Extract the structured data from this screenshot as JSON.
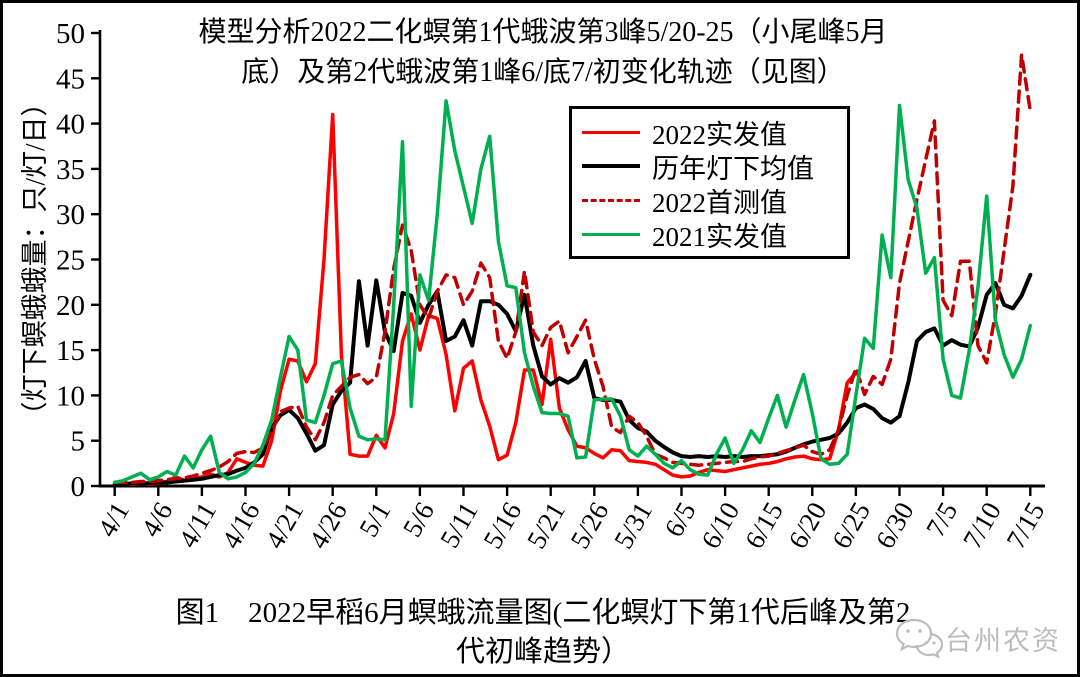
{
  "title": {
    "lines": [
      "模型分析2022二化螟第1代蛾波第3峰5/20-25（小尾峰5月",
      "底）及第2代蛾波第1峰6/底7/初变化轨迹（见图）"
    ]
  },
  "caption": {
    "lines": [
      "图1　2022早稻6月螟蛾流量图(二化螟灯下第1代后峰及第2",
      "代初峰趋势）"
    ]
  },
  "watermark": {
    "text": "台州农资",
    "icon": "wechat-bubbles-icon",
    "color": "#bdbdbd"
  },
  "colors": {
    "red": "#ff0000",
    "dark_red": "#c00000",
    "green": "#00b050",
    "black": "#000000"
  },
  "chart_data": {
    "type": "line",
    "title": "模型分析2022二化螟第1代蛾波第3峰5/20-25（小尾峰5月底）及第2代蛾波第1峰6/底7/初变化轨迹（见图）",
    "ylabel": "（灯下螟蛾蛾量：只/灯/日）",
    "xlabel": "",
    "ylim": [
      0,
      50
    ],
    "y_ticks": [
      0,
      5,
      10,
      15,
      20,
      25,
      30,
      35,
      40,
      45,
      50
    ],
    "grid": false,
    "legend_position": "top-center",
    "x_tick_labels": [
      "4/1",
      "4/6",
      "4/11",
      "4/16",
      "4/21",
      "4/26",
      "5/1",
      "5/6",
      "5/11",
      "5/16",
      "5/21",
      "5/26",
      "5/31",
      "6/5",
      "6/10",
      "6/15",
      "6/20",
      "6/25",
      "6/30",
      "7/5",
      "7/10",
      "7/15"
    ],
    "categories": [
      "4/1",
      "4/2",
      "4/3",
      "4/4",
      "4/5",
      "4/6",
      "4/7",
      "4/8",
      "4/9",
      "4/10",
      "4/11",
      "4/12",
      "4/13",
      "4/14",
      "4/15",
      "4/16",
      "4/17",
      "4/18",
      "4/19",
      "4/20",
      "4/21",
      "4/22",
      "4/23",
      "4/24",
      "4/25",
      "4/26",
      "4/27",
      "4/28",
      "4/29",
      "4/30",
      "5/1",
      "5/2",
      "5/3",
      "5/4",
      "5/5",
      "5/6",
      "5/7",
      "5/8",
      "5/9",
      "5/10",
      "5/11",
      "5/12",
      "5/13",
      "5/14",
      "5/15",
      "5/16",
      "5/17",
      "5/18",
      "5/19",
      "5/20",
      "5/21",
      "5/22",
      "5/23",
      "5/24",
      "5/25",
      "5/26",
      "5/27",
      "5/28",
      "5/29",
      "5/30",
      "5/31",
      "6/1",
      "6/2",
      "6/3",
      "6/4",
      "6/5",
      "6/6",
      "6/7",
      "6/8",
      "6/9",
      "6/10",
      "6/11",
      "6/12",
      "6/13",
      "6/14",
      "6/15",
      "6/16",
      "6/17",
      "6/18",
      "6/19",
      "6/20",
      "6/21",
      "6/22",
      "6/23",
      "6/24",
      "6/25",
      "6/26",
      "6/27",
      "6/28",
      "6/29",
      "6/30",
      "7/1",
      "7/2",
      "7/3",
      "7/4",
      "7/5",
      "7/6",
      "7/7",
      "7/8",
      "7/9",
      "7/10",
      "7/11",
      "7/12",
      "7/13",
      "7/14",
      "7/15"
    ],
    "series": [
      {
        "name": "2022实发值",
        "color": "#ff0000",
        "style": "solid",
        "width": 3.5,
        "values": [
          0.3,
          0.2,
          0.2,
          0.3,
          0.2,
          0.3,
          0.5,
          1.0,
          0.6,
          0.8,
          1.0,
          1.3,
          1.0,
          1.5,
          3.0,
          2.6,
          2.3,
          2.2,
          5.0,
          10.5,
          14.0,
          13.8,
          11.5,
          13.5,
          25.0,
          41.0,
          14.5,
          3.5,
          3.3,
          3.3,
          5.6,
          4.2,
          8.0,
          16.0,
          19.0,
          15.0,
          18.8,
          18.5,
          14.5,
          8.3,
          13.0,
          13.8,
          9.5,
          6.6,
          2.9,
          3.4,
          7.0,
          12.8,
          12.8,
          9.0,
          16.2,
          8.6,
          6.2,
          4.4,
          4.2,
          3.6,
          3.1,
          4.0,
          3.9,
          2.8,
          2.7,
          2.6,
          2.4,
          1.8,
          1.2,
          1.0,
          1.1,
          1.5,
          1.8,
          1.7,
          1.6,
          1.8,
          2.0,
          2.2,
          2.4,
          2.5,
          2.7,
          3.0,
          3.2,
          3.3,
          3.0,
          2.9,
          3.0,
          6.2,
          11.4,
          12.5,
          null,
          null,
          null,
          null,
          null,
          null,
          null,
          null,
          null,
          null,
          null,
          null,
          null,
          null,
          null,
          null,
          null,
          null,
          null,
          null
        ]
      },
      {
        "name": "历年灯下均值",
        "color": "#000000",
        "style": "solid",
        "width": 4,
        "values": [
          0.2,
          0.2,
          0.3,
          0.3,
          0.3,
          0.4,
          0.4,
          0.5,
          0.6,
          0.7,
          0.8,
          1.0,
          1.2,
          1.3,
          1.7,
          2.0,
          2.6,
          3.5,
          6.4,
          7.8,
          8.4,
          7.5,
          5.8,
          3.9,
          4.5,
          9.0,
          10.5,
          11.4,
          22.6,
          15.5,
          22.7,
          17.0,
          14.9,
          21.3,
          21.0,
          18.0,
          20.0,
          21.5,
          16.0,
          16.5,
          18.3,
          15.5,
          20.4,
          20.4,
          20.0,
          19.0,
          17.1,
          21.1,
          15.5,
          12.1,
          11.2,
          11.9,
          11.4,
          12.0,
          13.8,
          9.7,
          9.5,
          9.5,
          9.3,
          7.3,
          6.4,
          6.0,
          5.0,
          4.3,
          3.7,
          3.3,
          3.2,
          3.3,
          3.2,
          3.3,
          3.2,
          3.3,
          3.2,
          3.3,
          3.3,
          3.4,
          3.5,
          3.8,
          4.2,
          4.6,
          4.9,
          5.1,
          5.3,
          5.8,
          7.0,
          8.6,
          9.0,
          8.5,
          7.5,
          7.0,
          7.7,
          11.4,
          16.0,
          17.0,
          17.4,
          15.5,
          16.1,
          15.6,
          15.4,
          17.5,
          21.1,
          22.4,
          20.0,
          19.6,
          21.0,
          23.3
        ]
      },
      {
        "name": "2022首测值",
        "color": "#c00000",
        "style": "dashed",
        "width": 3.5,
        "values": [
          0.4,
          0.4,
          0.4,
          0.5,
          0.5,
          0.6,
          0.7,
          0.8,
          0.9,
          1.1,
          1.4,
          1.7,
          2.1,
          2.7,
          3.6,
          3.8,
          3.7,
          4.2,
          6.0,
          8.2,
          8.6,
          8.8,
          6.5,
          5.1,
          7.0,
          10.0,
          11.0,
          12.0,
          12.3,
          11.3,
          12.0,
          17.0,
          24.0,
          28.8,
          26.0,
          20.0,
          18.5,
          21.5,
          23.3,
          23.0,
          20.0,
          21.5,
          24.6,
          23.0,
          16.0,
          14.1,
          17.0,
          23.7,
          17.0,
          15.5,
          17.5,
          18.2,
          14.7,
          16.5,
          18.3,
          14.0,
          11.0,
          6.5,
          5.9,
          7.7,
          7.0,
          5.5,
          3.5,
          3.1,
          2.6,
          2.5,
          2.4,
          2.3,
          2.4,
          2.5,
          2.6,
          2.7,
          2.7,
          3.0,
          3.2,
          3.3,
          3.6,
          3.9,
          4.2,
          4.5,
          3.8,
          3.5,
          4.0,
          6.2,
          10.0,
          13.0,
          10.1,
          12.1,
          11.2,
          14.0,
          22.4,
          27.0,
          31.6,
          36.0,
          40.3,
          20.5,
          18.8,
          24.8,
          24.8,
          15.5,
          13.6,
          19.0,
          26.0,
          33.1,
          47.6,
          41.4
        ]
      },
      {
        "name": "2021实发值",
        "color": "#00b050",
        "style": "solid",
        "width": 3.5,
        "values": [
          0.4,
          0.6,
          1.0,
          1.4,
          0.7,
          1.0,
          1.6,
          1.2,
          3.3,
          2.0,
          4.0,
          5.5,
          1.5,
          0.8,
          1.0,
          1.5,
          2.5,
          4.5,
          7.3,
          12.0,
          16.5,
          15.0,
          7.3,
          7.0,
          10.0,
          13.5,
          13.8,
          8.6,
          5.5,
          5.1,
          5.2,
          5.1,
          20.0,
          38.0,
          8.8,
          23.3,
          20.5,
          30.0,
          42.5,
          37.0,
          33.0,
          29.0,
          35.0,
          38.6,
          27.0,
          22.1,
          21.9,
          14.7,
          11.0,
          8.1,
          8.0,
          8.0,
          7.7,
          3.1,
          3.2,
          9.5,
          9.6,
          9.6,
          7.7,
          4.0,
          3.3,
          4.4,
          3.5,
          2.5,
          2.0,
          2.8,
          1.8,
          1.3,
          1.2,
          3.5,
          5.3,
          2.5,
          4.0,
          6.1,
          4.8,
          7.5,
          10.0,
          6.5,
          9.5,
          12.3,
          8.0,
          3.0,
          2.4,
          2.5,
          3.5,
          10.0,
          16.3,
          15.2,
          27.7,
          23.0,
          42.0,
          33.8,
          30.7,
          23.5,
          25.2,
          14.0,
          10.0,
          9.7,
          15.0,
          22.0,
          32.0,
          18.3,
          14.5,
          12.0,
          14.0,
          17.7
        ]
      }
    ]
  }
}
